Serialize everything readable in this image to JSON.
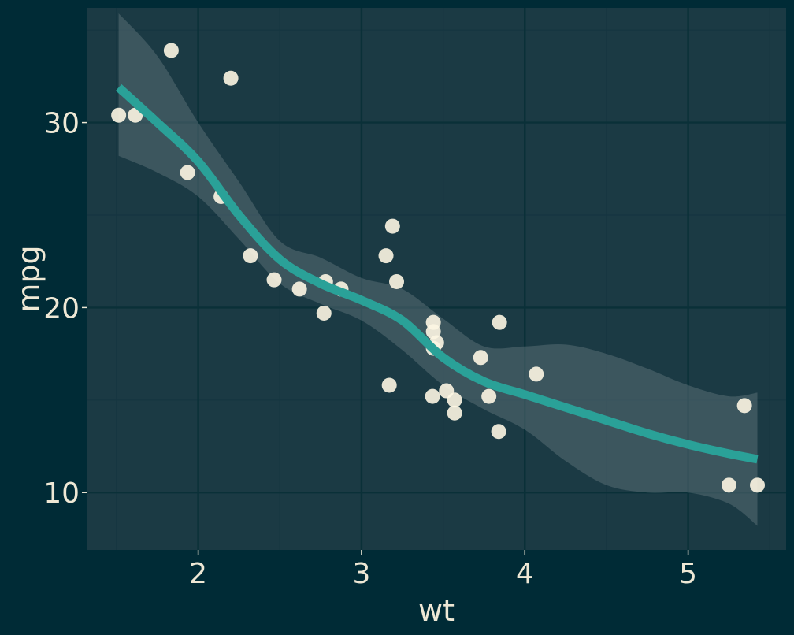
{
  "chart_data": {
    "type": "scatter",
    "title": "",
    "xlabel": "wt",
    "ylabel": "mpg",
    "xlim": [
      1.317,
      5.6
    ],
    "ylim": [
      6.9,
      36.2
    ],
    "xticks": [
      2,
      3,
      4,
      5
    ],
    "yticks": [
      10,
      20,
      30
    ],
    "x_tick_labels": [
      "2",
      "3",
      "4",
      "5"
    ],
    "y_tick_labels": [
      "10",
      "20",
      "30"
    ],
    "grid": true,
    "legend": "none",
    "colors": {
      "background": "#002b36",
      "panel": "#1b3a44",
      "grid_major": "#0a3038",
      "grid_minor": "#153540",
      "points": "#fdf6e3",
      "smooth_line": "#2aa198",
      "ribbon": "#586e75",
      "text": "#eee8d5"
    },
    "points": {
      "x": [
        2.62,
        2.875,
        2.32,
        3.215,
        3.44,
        3.46,
        3.57,
        3.19,
        3.15,
        3.44,
        3.44,
        4.07,
        3.73,
        3.78,
        5.25,
        5.424,
        5.345,
        2.2,
        1.615,
        1.835,
        2.465,
        3.52,
        3.435,
        3.84,
        3.845,
        1.935,
        2.14,
        1.513,
        3.17,
        2.77,
        3.57,
        2.78
      ],
      "y": [
        21.0,
        21.0,
        22.8,
        21.4,
        18.7,
        18.1,
        14.3,
        24.4,
        22.8,
        19.2,
        17.8,
        16.4,
        17.3,
        15.2,
        10.4,
        10.4,
        14.7,
        32.4,
        30.4,
        33.9,
        21.5,
        15.5,
        15.2,
        13.3,
        19.2,
        27.3,
        26.0,
        30.4,
        15.8,
        19.7,
        15.0,
        21.4
      ]
    },
    "smooth": {
      "method": "loess",
      "x": [
        1.513,
        1.75,
        2.0,
        2.25,
        2.5,
        2.75,
        3.0,
        3.25,
        3.5,
        3.75,
        4.0,
        4.25,
        4.5,
        4.75,
        5.0,
        5.25,
        5.424
      ],
      "y": [
        31.9,
        30.0,
        27.9,
        25.0,
        22.6,
        21.3,
        20.4,
        19.3,
        17.3,
        16.0,
        15.3,
        14.6,
        13.9,
        13.2,
        12.6,
        12.1,
        11.8
      ],
      "ymin": [
        28.2,
        27.3,
        26.0,
        23.7,
        21.3,
        20.2,
        19.3,
        17.7,
        15.8,
        14.5,
        13.4,
        11.7,
        10.4,
        10.0,
        10.0,
        9.4,
        8.2
      ],
      "ymax": [
        35.9,
        33.6,
        30.0,
        26.8,
        23.6,
        22.7,
        21.6,
        21.0,
        19.4,
        17.9,
        17.9,
        18.0,
        17.5,
        16.7,
        15.8,
        15.2,
        15.4
      ]
    }
  }
}
